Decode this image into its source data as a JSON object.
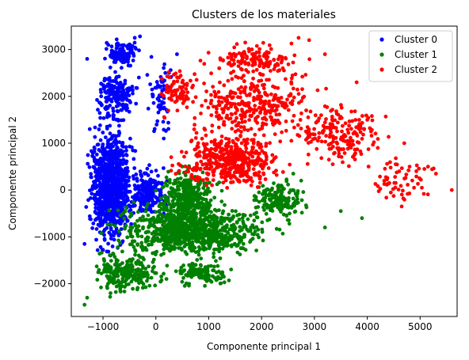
{
  "chart_data": {
    "type": "scatter",
    "title": "Clusters de los materiales",
    "xlabel": "Componente principal 1",
    "ylabel": "Componente principal 2",
    "xlim": [
      -1600,
      5700
    ],
    "ylim": [
      -2700,
      3500
    ],
    "xticks": [
      -1000,
      0,
      1000,
      2000,
      3000,
      4000,
      5000
    ],
    "yticks": [
      -2000,
      -1000,
      0,
      1000,
      2000,
      3000
    ],
    "grid": false,
    "legend_position": "top-right",
    "series": [
      {
        "name": "Cluster 0",
        "color": "#0000ff",
        "regions": [
          {
            "count": 900,
            "x": [
              -1300,
              -400
            ],
            "y": [
              -1300,
              1500
            ]
          },
          {
            "count": 200,
            "x": [
              -600,
              300
            ],
            "y": [
              -700,
              600
            ]
          },
          {
            "count": 180,
            "x": [
              -1200,
              -300
            ],
            "y": [
              1400,
              2600
            ]
          },
          {
            "count": 110,
            "x": [
              -1000,
              -300
            ],
            "y": [
              2600,
              3250
            ]
          },
          {
            "count": 60,
            "x": [
              -200,
              400
            ],
            "y": [
              900,
              3000
            ]
          }
        ],
        "points": [
          {
            "x": -1300,
            "y": 2800
          },
          {
            "x": -900,
            "y": 3100
          },
          {
            "x": -400,
            "y": 3250
          },
          {
            "x": -300,
            "y": 3280
          },
          {
            "x": -1350,
            "y": -1150
          },
          {
            "x": -1250,
            "y": 1300
          },
          {
            "x": 250,
            "y": 2500
          },
          {
            "x": 400,
            "y": 2900
          },
          {
            "x": 150,
            "y": 1100
          }
        ]
      },
      {
        "name": "Cluster 1",
        "color": "#008000",
        "regions": [
          {
            "count": 900,
            "x": [
              -1000,
              2300
            ],
            "y": [
              -1500,
              -200
            ]
          },
          {
            "count": 350,
            "x": [
              0,
              1200
            ],
            "y": [
              -800,
              500
            ]
          },
          {
            "count": 220,
            "x": [
              -1300,
              200
            ],
            "y": [
              -2300,
              -1200
            ]
          },
          {
            "count": 170,
            "x": [
              1800,
              2900
            ],
            "y": [
              -700,
              300
            ]
          },
          {
            "count": 120,
            "x": [
              200,
              1500
            ],
            "y": [
              -2100,
              -1500
            ]
          }
        ],
        "points": [
          {
            "x": -1350,
            "y": -2450
          },
          {
            "x": -1300,
            "y": -2300
          },
          {
            "x": 3200,
            "y": -800
          },
          {
            "x": 3500,
            "y": -450
          },
          {
            "x": 3900,
            "y": -600
          },
          {
            "x": 2600,
            "y": 350
          },
          {
            "x": 2750,
            "y": 200
          },
          {
            "x": 500,
            "y": 500
          },
          {
            "x": 200,
            "y": -1900
          }
        ]
      },
      {
        "name": "Cluster 2",
        "color": "#ff0000",
        "regions": [
          {
            "count": 450,
            "x": [
              300,
              2500
            ],
            "y": [
              0,
              1300
            ]
          },
          {
            "count": 320,
            "x": [
              500,
              3200
            ],
            "y": [
              1000,
              2600
            ]
          },
          {
            "count": 180,
            "x": [
              2500,
              4500
            ],
            "y": [
              400,
              2000
            ]
          },
          {
            "count": 140,
            "x": [
              800,
              3000
            ],
            "y": [
              2300,
              3250
            ]
          },
          {
            "count": 60,
            "x": [
              4000,
              5400
            ],
            "y": [
              -300,
              800
            ]
          },
          {
            "count": 80,
            "x": [
              0,
              800
            ],
            "y": [
              1500,
              2700
            ]
          }
        ],
        "points": [
          {
            "x": 5600,
            "y": 0
          },
          {
            "x": 5300,
            "y": 350
          },
          {
            "x": 5150,
            "y": 500
          },
          {
            "x": 4650,
            "y": -350
          },
          {
            "x": 2700,
            "y": 3250
          },
          {
            "x": 2900,
            "y": 3200
          },
          {
            "x": 3200,
            "y": 2900
          },
          {
            "x": 3800,
            "y": 2300
          },
          {
            "x": 4000,
            "y": 1500
          },
          {
            "x": 4700,
            "y": 1000
          },
          {
            "x": 4200,
            "y": 900
          },
          {
            "x": 4800,
            "y": 500
          }
        ]
      }
    ]
  }
}
